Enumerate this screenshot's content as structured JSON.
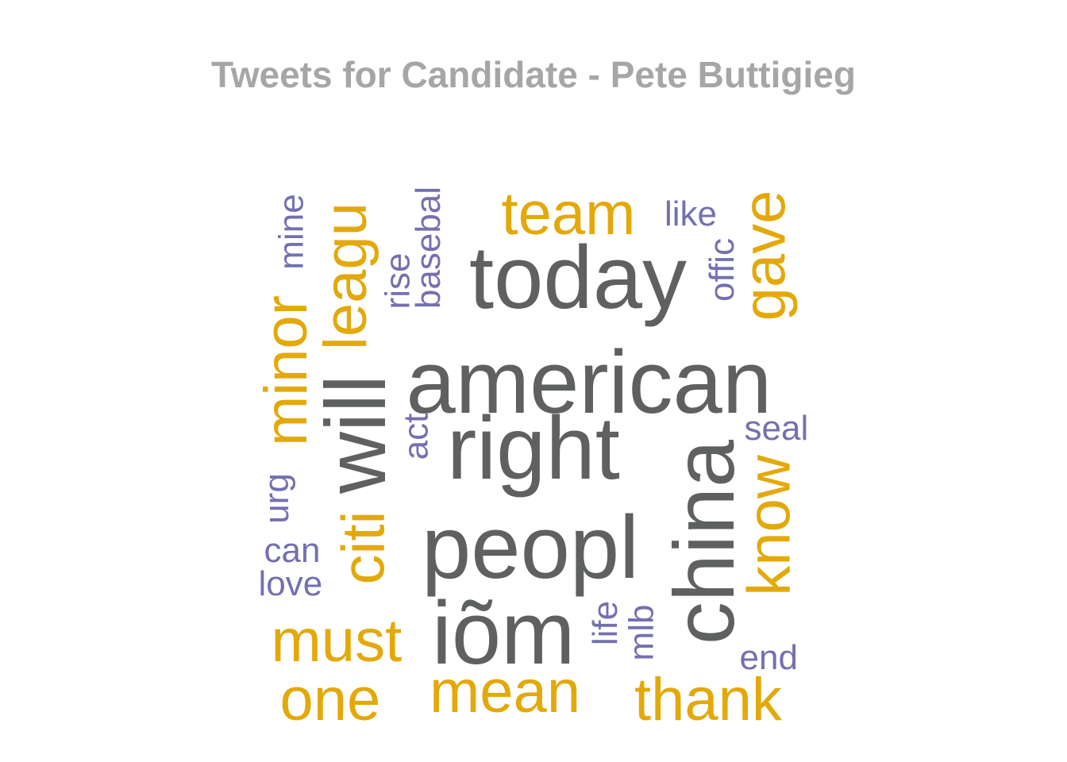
{
  "title": "Tweets for Candidate - Pete Buttigieg",
  "colors": {
    "title": "#a6a6a6",
    "large_words": "#5f6161",
    "medium_words": "#e3a90a",
    "small_words": "#7470af"
  },
  "words": {
    "today": "today",
    "american": "american",
    "right": "right",
    "peopl": "peopl",
    "iom": "iõm",
    "china": "china",
    "will": "will",
    "team": "team",
    "gave": "gave",
    "minor": "minor",
    "leagu": "leagu",
    "citi": "citi",
    "must": "must",
    "one": "one",
    "mean": "mean",
    "thank": "thank",
    "know": "know",
    "mine": "mine",
    "rise": "rise",
    "baseball": "basebal",
    "like": "like",
    "offic": "offic",
    "act": "act",
    "seal": "seal",
    "urg": "urg",
    "can": "can",
    "love": "love",
    "life": "life",
    "mlb": "mlb",
    "end": "end"
  }
}
